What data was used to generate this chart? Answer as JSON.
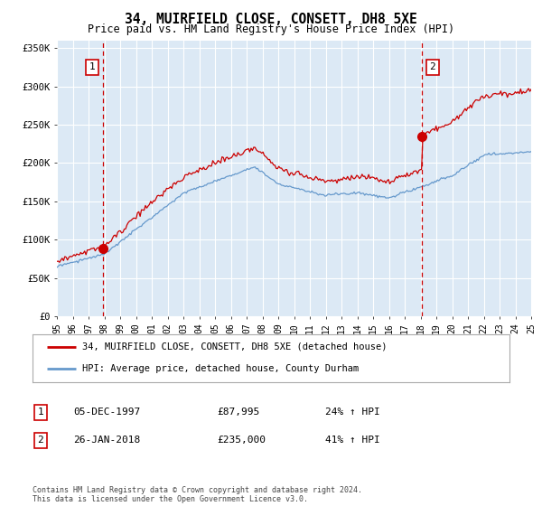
{
  "title": "34, MUIRFIELD CLOSE, CONSETT, DH8 5XE",
  "subtitle": "Price paid vs. HM Land Registry's House Price Index (HPI)",
  "ylim": [
    0,
    360000
  ],
  "yticks": [
    0,
    50000,
    100000,
    150000,
    200000,
    250000,
    300000,
    350000
  ],
  "ytick_labels": [
    "£0",
    "£50K",
    "£100K",
    "£150K",
    "£200K",
    "£250K",
    "£300K",
    "£350K"
  ],
  "background_color": "#dce9f5",
  "line1_color": "#cc0000",
  "line2_color": "#6699cc",
  "marker1_date": 1997.92,
  "marker1_value": 87995,
  "marker1_label": "1",
  "marker2_date": 2018.07,
  "marker2_value": 235000,
  "marker2_label": "2",
  "legend_line1": "34, MUIRFIELD CLOSE, CONSETT, DH8 5XE (detached house)",
  "legend_line2": "HPI: Average price, detached house, County Durham",
  "table_row1_num": "1",
  "table_row1_date": "05-DEC-1997",
  "table_row1_price": "£87,995",
  "table_row1_hpi": "24% ↑ HPI",
  "table_row2_num": "2",
  "table_row2_date": "26-JAN-2018",
  "table_row2_price": "£235,000",
  "table_row2_hpi": "41% ↑ HPI",
  "footer": "Contains HM Land Registry data © Crown copyright and database right 2024.\nThis data is licensed under the Open Government Licence v3.0.",
  "xstart": 1995,
  "xend": 2025
}
